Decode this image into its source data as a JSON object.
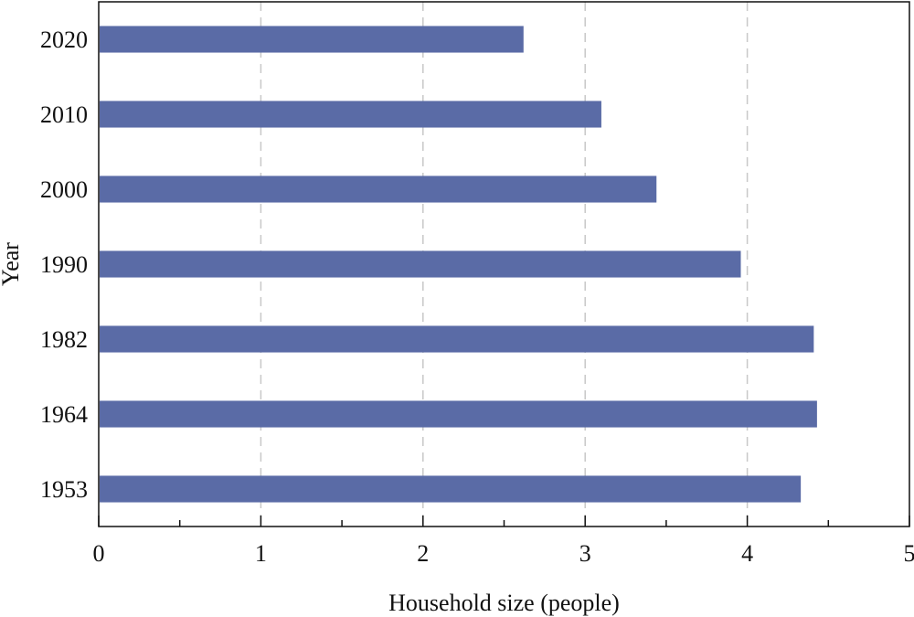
{
  "chart_data": {
    "type": "bar",
    "orientation": "horizontal",
    "categories": [
      "2020",
      "2010",
      "2000",
      "1990",
      "1982",
      "1964",
      "1953"
    ],
    "values": [
      2.62,
      3.1,
      3.44,
      3.96,
      4.41,
      4.43,
      4.33
    ],
    "xlabel": "Household size (people)",
    "ylabel": "Year",
    "xlim": [
      0,
      5
    ],
    "xticks": [
      "0",
      "1",
      "2",
      "3",
      "4",
      "5"
    ],
    "grid": "vertical-dashed",
    "bar_color": "#5a6ba6",
    "grid_color": "#c8c8c8",
    "axis_color": "#111111"
  }
}
